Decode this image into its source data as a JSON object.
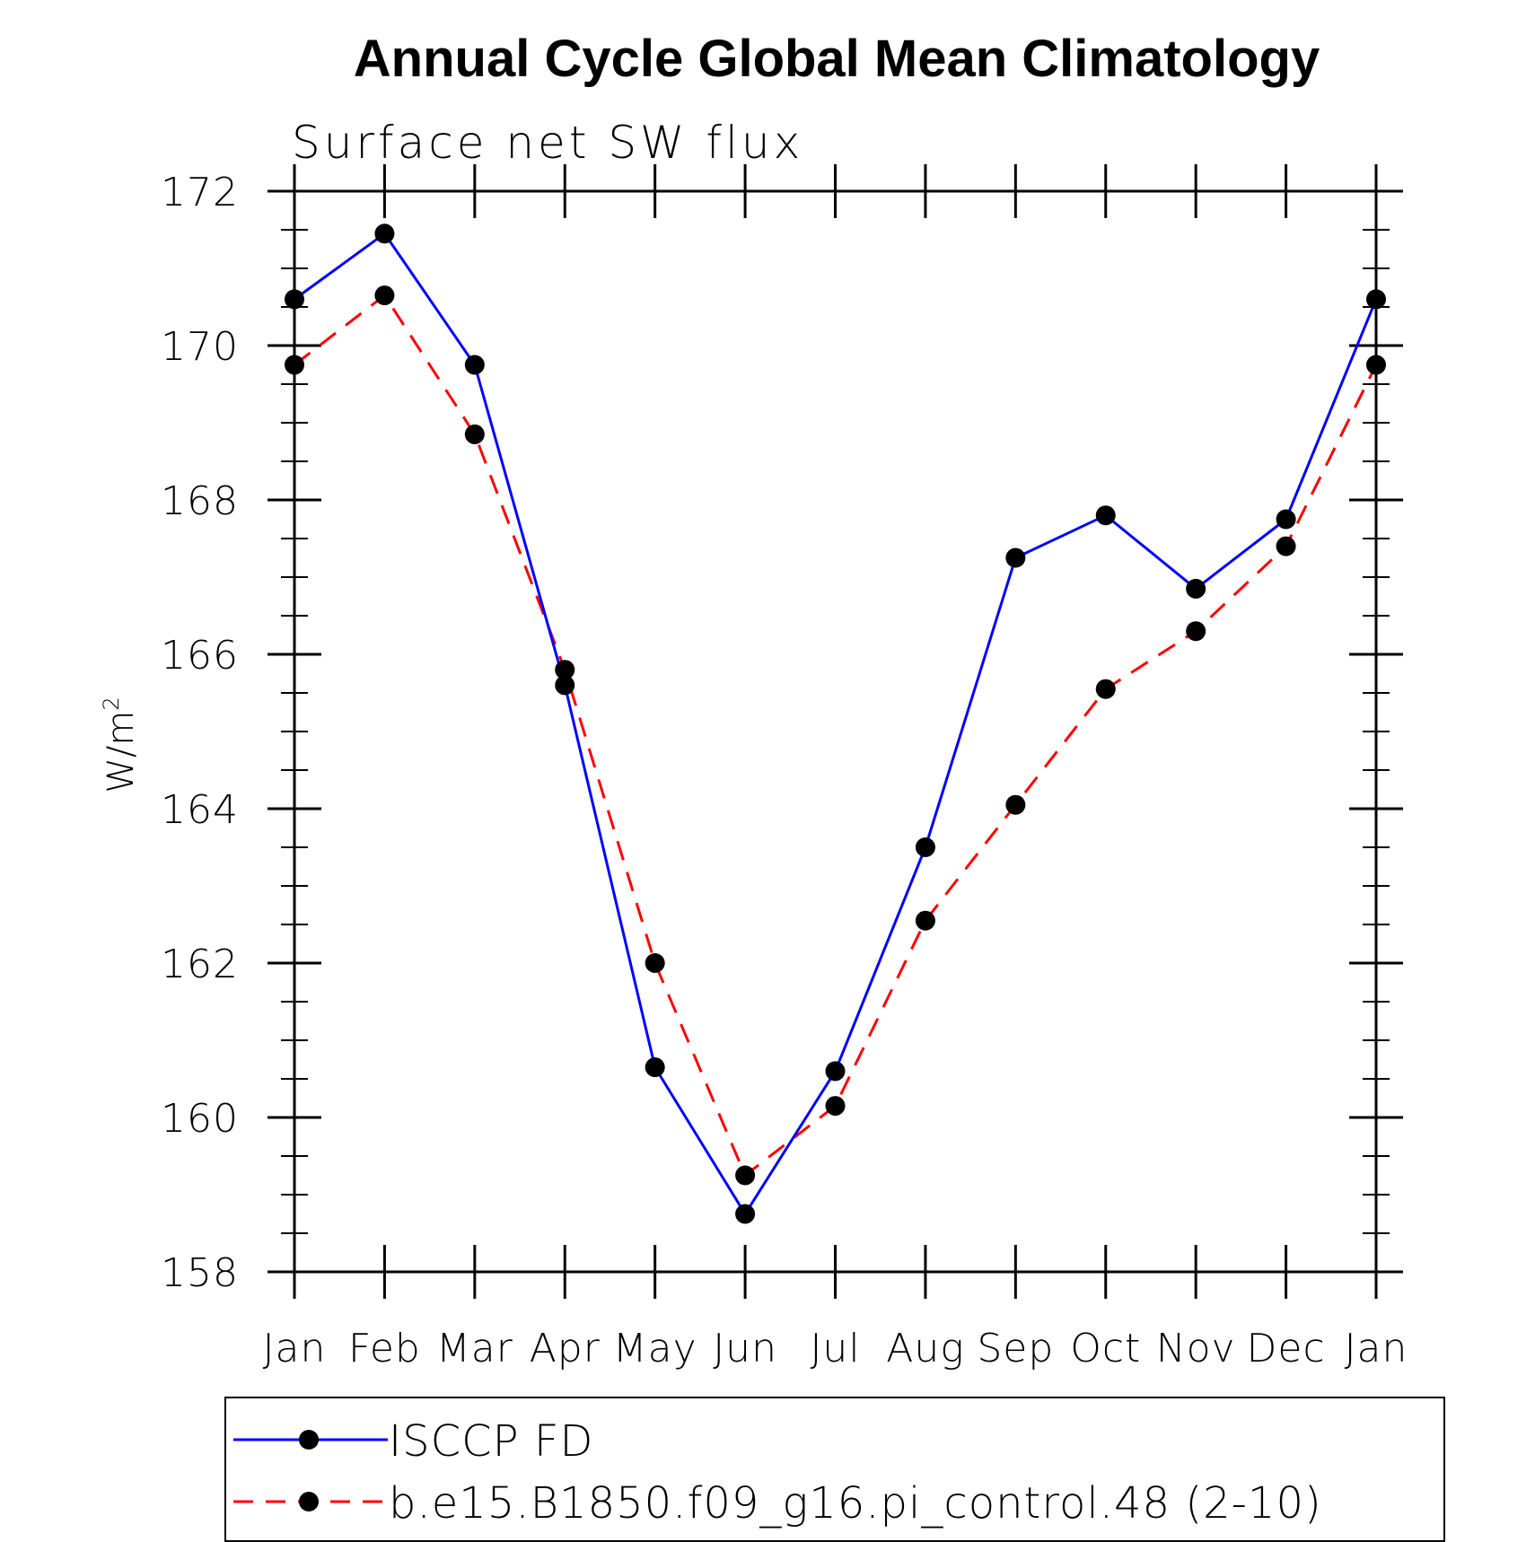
{
  "chart_data": {
    "type": "line",
    "title": "Annual Cycle Global Mean Climatology",
    "subtitle": "Surface net SW flux",
    "ylabel": "W/m",
    "ylabel_superscript": "2",
    "categories": [
      "Jan",
      "Feb",
      "Mar",
      "Apr",
      "May",
      "Jun",
      "Jul",
      "Aug",
      "Sep",
      "Oct",
      "Nov",
      "Dec",
      "Jan"
    ],
    "ylim": [
      158,
      172
    ],
    "yticks": [
      158,
      160,
      162,
      164,
      166,
      168,
      170,
      172
    ],
    "ytick_labels": [
      "158",
      "160",
      "162",
      "164",
      "166",
      "168",
      "170",
      "172"
    ],
    "y_minor_step": 0.5,
    "grid": false,
    "legend_position": "bottom",
    "series": [
      {
        "name": "ISCCP FD",
        "color": "#0000ff",
        "line_style": "solid",
        "marker": "filled-circle",
        "values": [
          170.6,
          171.45,
          169.75,
          165.6,
          160.65,
          158.75,
          160.6,
          163.5,
          167.25,
          167.8,
          166.85,
          167.75,
          170.6
        ]
      },
      {
        "name": "b.e15.B1850.f09_g16.pi_control.48 (2-10)",
        "color": "#ff0000",
        "line_style": "dashed",
        "marker": "filled-circle",
        "values": [
          169.75,
          170.65,
          168.85,
          165.8,
          162.0,
          159.25,
          160.15,
          162.55,
          164.05,
          165.55,
          166.3,
          167.4,
          169.75
        ]
      }
    ]
  }
}
